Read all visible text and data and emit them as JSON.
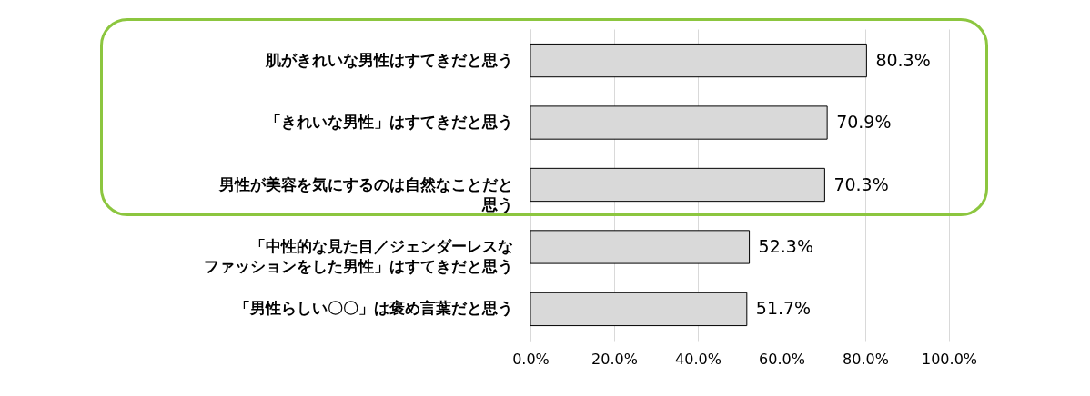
{
  "chart_data": {
    "type": "bar",
    "orientation": "horizontal",
    "categories": [
      "肌がきれいな男性はすてきだと思う",
      "「きれいな男性」はすてきだと思う",
      "男性が美容を気にするのは自然なことだと思う",
      "「中性的な見た目／ジェンダーレスなファッションをした男性」はすてきだと思う",
      "「男性らしい〇〇」は褒め言葉だと思う"
    ],
    "values": [
      80.3,
      70.9,
      70.3,
      52.3,
      51.7
    ],
    "value_labels": [
      "80.3%",
      "70.9%",
      "70.3%",
      "52.3%",
      "51.7%"
    ],
    "color": "#d9d9d9",
    "xlim": [
      0,
      100
    ],
    "xticks": [
      {
        "value": 0,
        "label": "0.0%"
      },
      {
        "value": 20,
        "label": "20.0%"
      },
      {
        "value": 40,
        "label": "40.0%"
      },
      {
        "value": 60,
        "label": "60.0%"
      },
      {
        "value": 80,
        "label": "80.0%"
      },
      {
        "value": 100,
        "label": "100.0%"
      }
    ],
    "grid": "x"
  }
}
